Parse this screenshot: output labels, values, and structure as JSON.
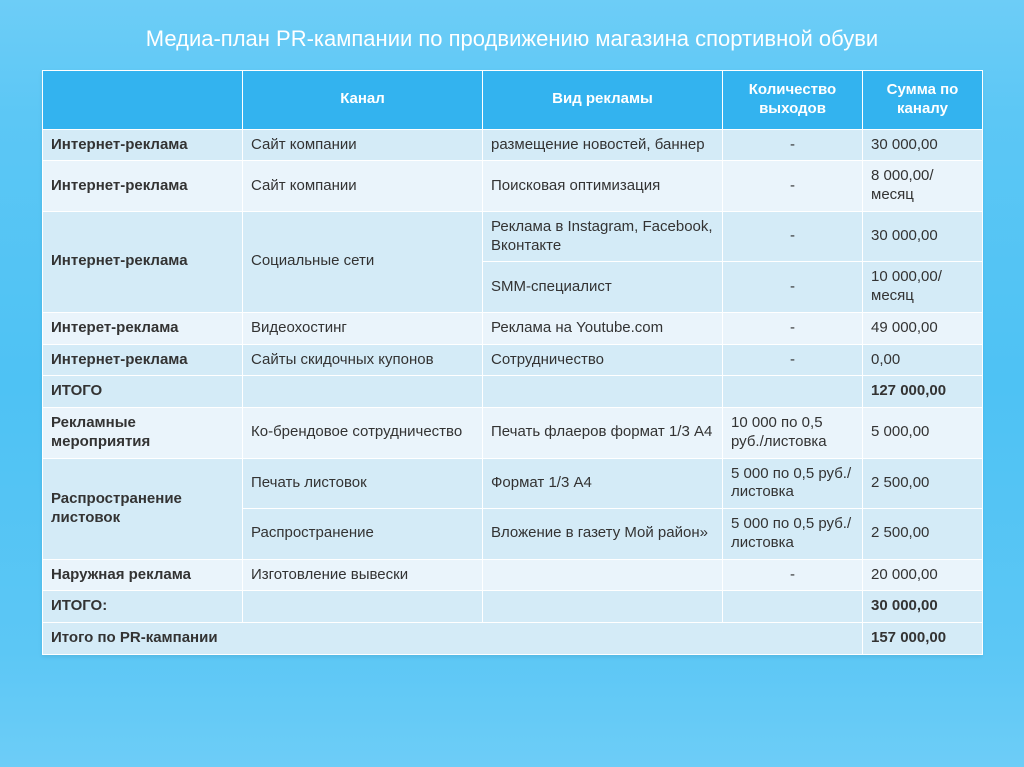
{
  "title": "Медиа-план PR-кампании по продвижению магазина спортивной обуви",
  "colors": {
    "header_bg": "#33b3ef",
    "header_fg": "#ffffff",
    "band_a": "#d4ebf7",
    "band_b": "#eaf4fb",
    "page_gradient_top": "#6dcdf7",
    "page_gradient_mid": "#4ec2f4"
  },
  "table": {
    "type": "table",
    "columns": {
      "category": "",
      "channel": "Канал",
      "ad_type": "Вид рекламы",
      "outputs": "Количество выходов",
      "sum": "Сумма по каналу"
    },
    "rows": {
      "r1": {
        "category": "Интернет-реклама",
        "channel": "Сайт компании",
        "ad_type": "размещение новостей, баннер",
        "outputs": "-",
        "sum": "30 000,00"
      },
      "r2": {
        "category": "Интернет-реклама",
        "channel": " Сайт компании",
        "ad_type": "Поисковая оптимизация",
        "outputs": "-",
        "sum": "8 000,00/ месяц"
      },
      "r3": {
        "category": "Интернет-реклама",
        "channel": "Социальные сети",
        "ad_type": "Реклама в Instagram, Facebook, Вконтакте",
        "outputs": "-",
        "sum": "30 000,00"
      },
      "r4": {
        "ad_type": "SMM-специалист",
        "outputs": "-",
        "sum": "10 000,00/месяц"
      },
      "r5": {
        "category": "Интерет-реклама",
        "channel": "Видеохостинг",
        "ad_type": "Реклама на Youtube.com",
        "outputs": "-",
        "sum": "49 000,00"
      },
      "r6": {
        "category": "Интернет-реклама",
        "channel": "Сайты скидочных купонов",
        "ad_type": "Сотрудничество",
        "outputs": "-",
        "sum": "0,00"
      },
      "t1": {
        "category": "ИТОГО",
        "sum": "127 000,00"
      },
      "r7": {
        "category": "Рекламные мероприятия",
        "channel": "Ко-брендовое сотрудничество",
        "ad_type": "Печать флаеров формат 1/3 А4",
        "outputs": "10 000 по 0,5 руб./листовка",
        "sum": "5 000,00"
      },
      "r8": {
        "category": "Распространение листовок",
        "channel": "Печать листовок",
        "ad_type": "Формат 1/3 А4",
        "outputs": "5 000 по 0,5 руб./листовка",
        "sum": "2 500,00"
      },
      "r9": {
        "channel": "Распространение",
        "ad_type": "Вложение в газету Мой район»",
        "outputs": "5 000 по 0,5 руб./листовка",
        "sum": "2 500,00"
      },
      "r10": {
        "category": "Наружная реклама",
        "channel": "Изготовление вывески",
        "outputs": "-",
        "sum": "20 000,00"
      },
      "t2": {
        "category": "ИТОГО:",
        "sum": "30 000,00"
      },
      "g": {
        "category": "Итого по PR-кампании",
        "sum": "157 000,00"
      }
    }
  }
}
